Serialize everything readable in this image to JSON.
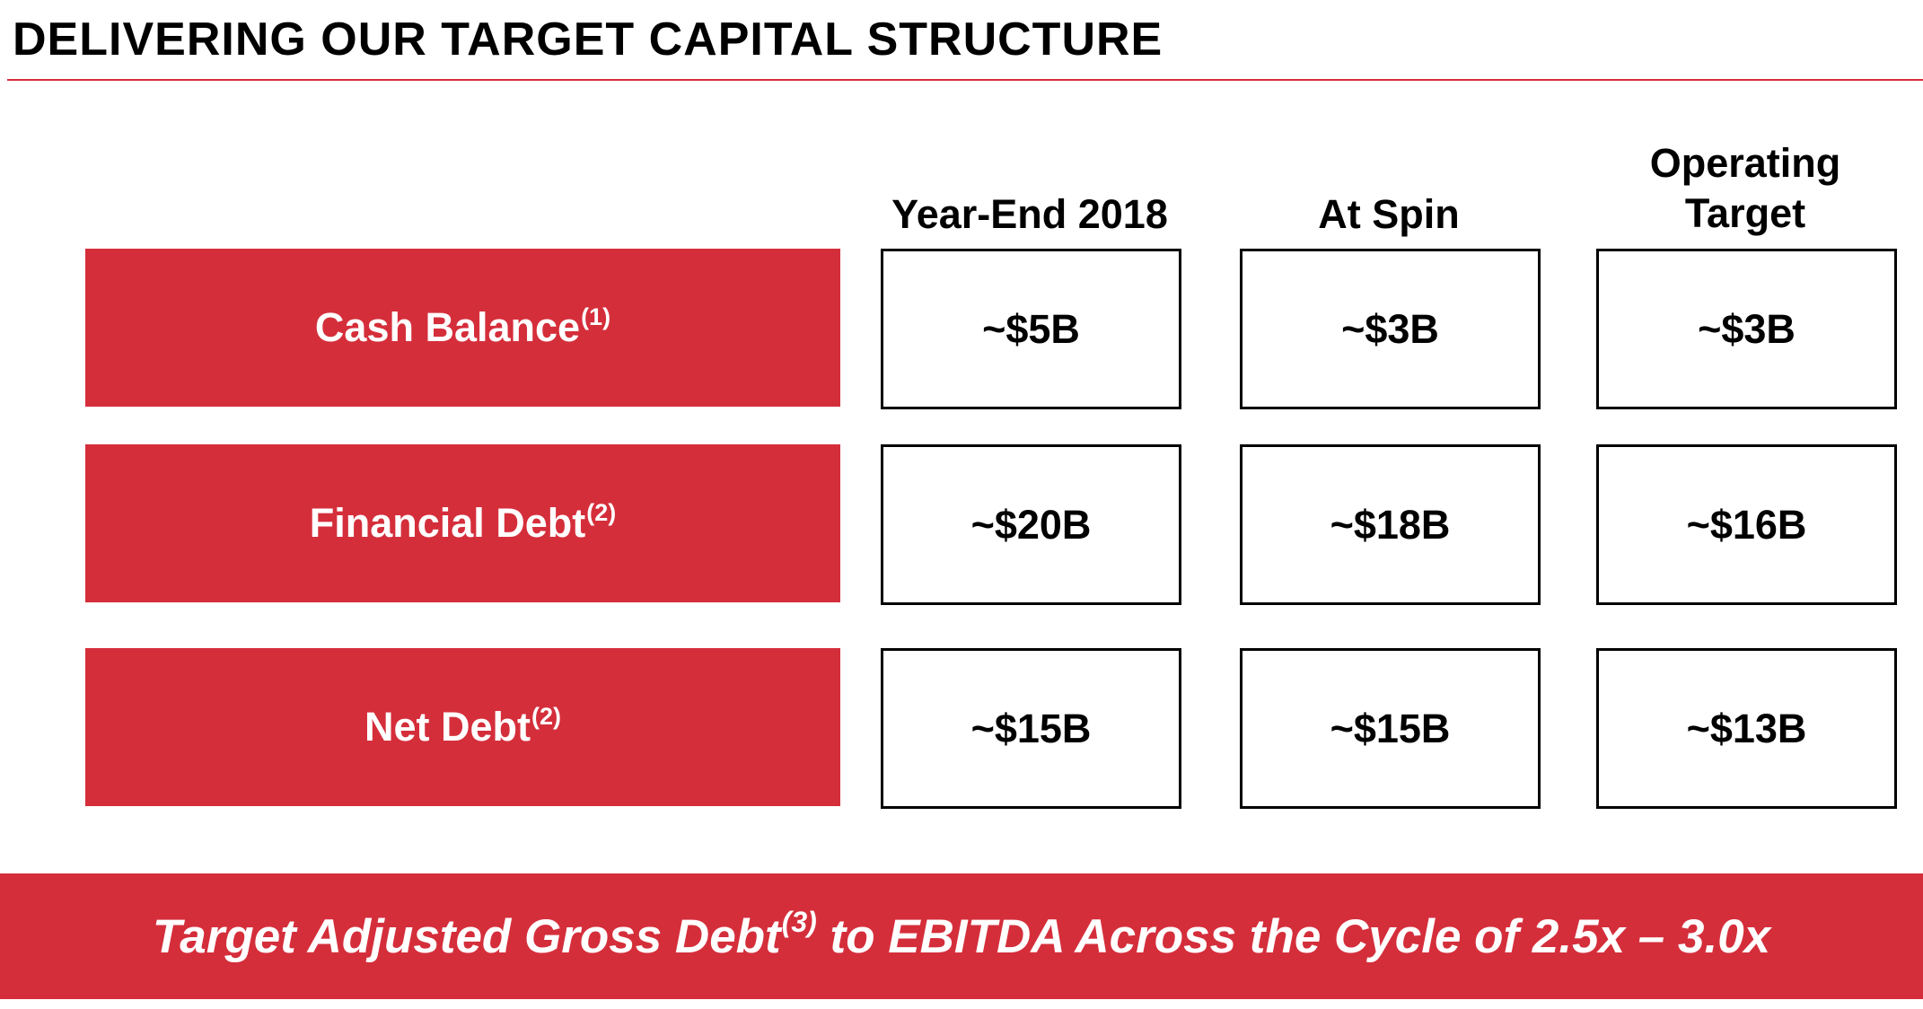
{
  "page": {
    "title": "DELIVERING OUR TARGET CAPITAL STRUCTURE",
    "accent_color": "#d52e3b"
  },
  "columns": [
    {
      "label_line1": "Year-End 2018",
      "label_line2": ""
    },
    {
      "label_line1": "At Spin",
      "label_line2": ""
    },
    {
      "label_line1": "Operating",
      "label_line2": "Target"
    }
  ],
  "rows": [
    {
      "label": "Cash Balance",
      "footnote": "(1)",
      "values": [
        "~$5B",
        "~$3B",
        "~$3B"
      ]
    },
    {
      "label": "Financial Debt",
      "footnote": "(2)",
      "values": [
        "~$20B",
        "~$18B",
        "~$16B"
      ]
    },
    {
      "label": "Net Debt",
      "footnote": "(2)",
      "values": [
        "~$15B",
        "~$15B",
        "~$13B"
      ]
    }
  ],
  "banner": {
    "text_before": "Target Adjusted Gross Debt",
    "footnote": "(3)",
    "text_after": " to EBITDA Across the Cycle of 2.5x – 3.0x"
  }
}
